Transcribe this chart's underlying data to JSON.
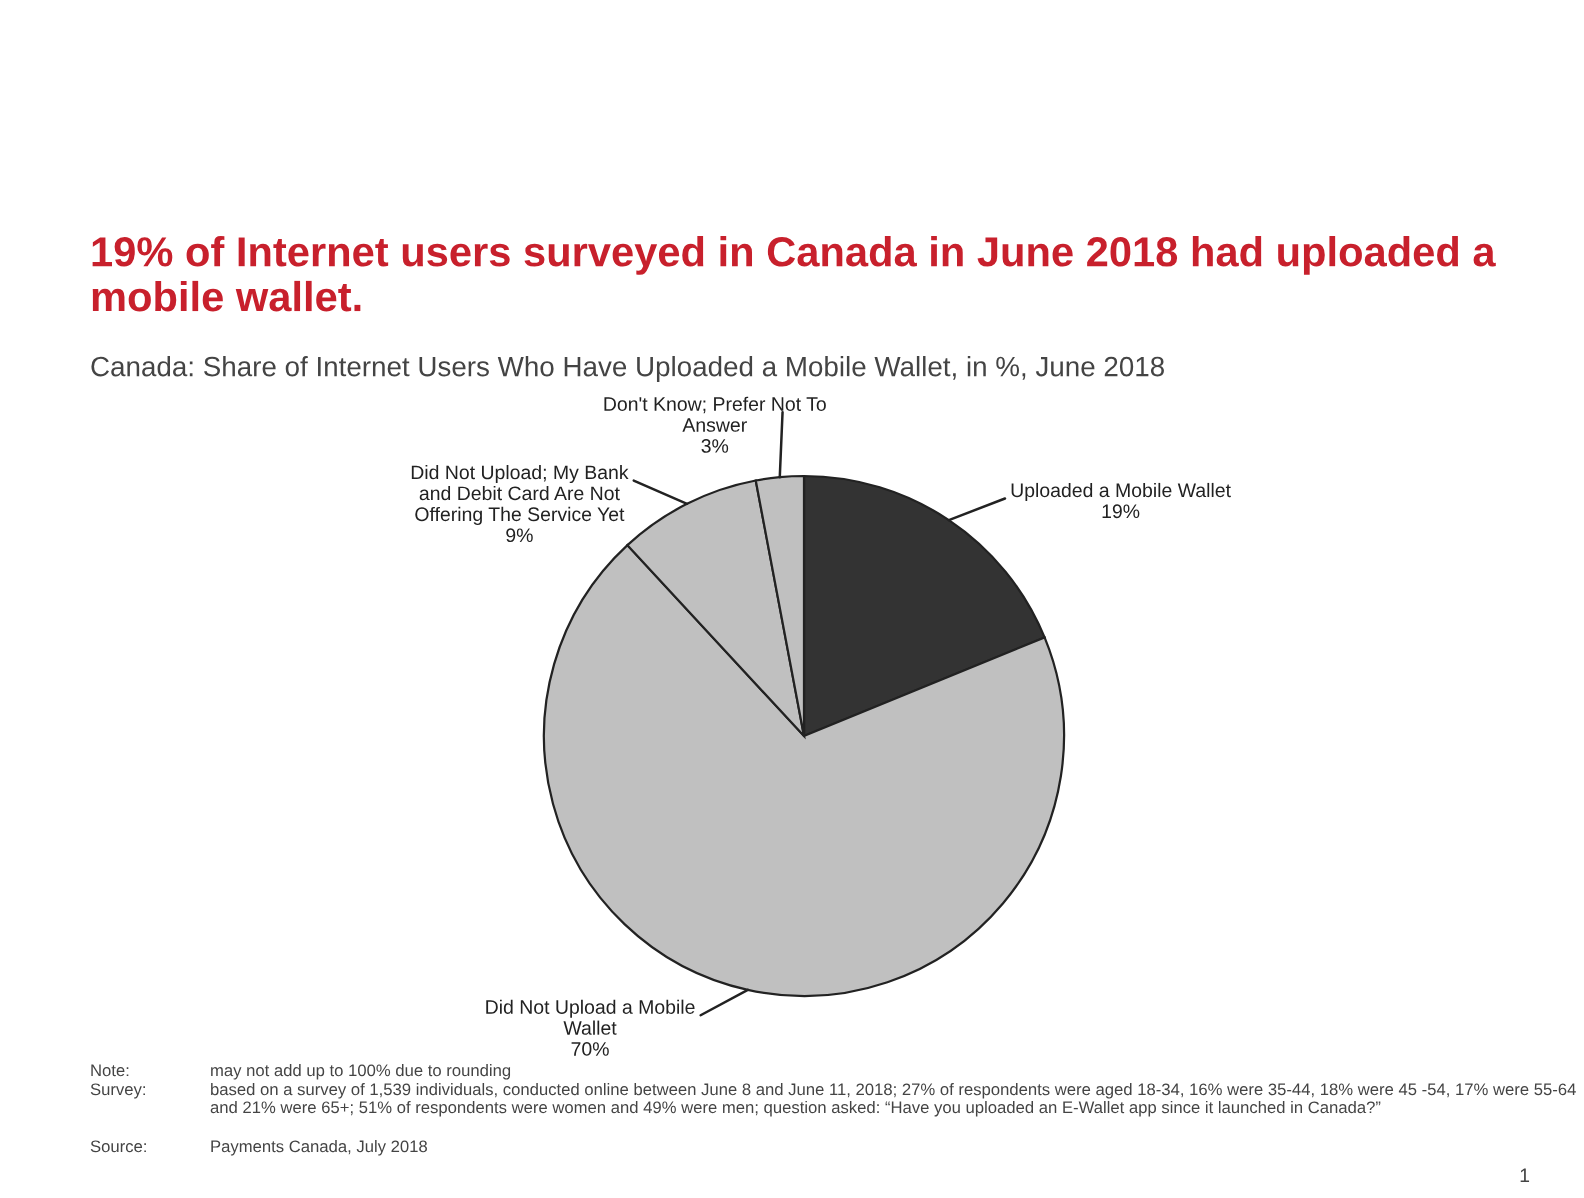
{
  "chart_data": {
    "type": "pie",
    "title": "19% of Internet users surveyed in Canada in June 2018 had uploaded a mobile wallet.",
    "subtitle": "Canada: Share of Internet Users Who Have Uploaded a Mobile Wallet, in %, June 2018",
    "categories": [
      "Uploaded a Mobile Wallet",
      "Did Not Upload a Mobile\nWallet",
      "Did Not Upload; My Bank\nand Debit Card Are Not\nOffering The Service Yet",
      "Don't Know; Prefer Not To\nAnswer"
    ],
    "values": [
      19,
      70,
      9,
      3
    ],
    "colors": [
      "#333333",
      "#c0c0c0",
      "#c0c0c0",
      "#c0c0c0"
    ],
    "value_labels": [
      "19%",
      "70%",
      "9%",
      "3%"
    ],
    "annotations": [
      "Note:",
      "may not add up to 100% due to rounding",
      "Survey:",
      "based on a survey of 1,539 individuals, conducted online between June 8 and June 11, 2018; 27% of respondents were aged 18-34, 16% were 35-44, 18% were 45 -54, 17% were 55-64 and 21% were 65+; 51% of respondents were women and 49% were men; question asked: “Have you uploaded an E-Wallet app since it launched in Canada?”",
      "Source:",
      "Payments Canada, July 2018",
      "1"
    ]
  }
}
